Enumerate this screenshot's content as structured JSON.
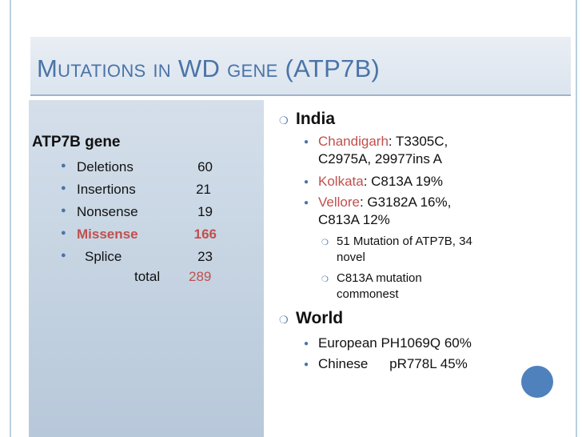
{
  "slide": {
    "title": "Mutations in WD gene (ATP7B)"
  },
  "left": {
    "heading": "ATP7B gene",
    "rows": [
      {
        "label": "Deletions",
        "value": "60"
      },
      {
        "label": "Insertions",
        "value": "21"
      },
      {
        "label": "Nonsense",
        "value": "19"
      },
      {
        "label": "Missense",
        "value": "166"
      },
      {
        "label": "Splice",
        "value": "23"
      }
    ],
    "total_label": "total",
    "total_value": "289"
  },
  "right": {
    "india": {
      "heading": "India",
      "chandigarh_place": "Chandigarh",
      "chandigarh_text_1": ": T3305C,",
      "chandigarh_text_2": "C2975A, 29977ins A",
      "kolkata_place": "Kolkata",
      "kolkata_text": ": C813A 19%",
      "vellore_place": "Vellore",
      "vellore_text_1": ": G3182A 16%,",
      "vellore_text_2": "C813A 12%",
      "sub1_line1": "51 Mutation of ATP7B, 34",
      "sub1_line2": "novel",
      "sub2_line1": "C813A mutation",
      "sub2_line2": "commonest"
    },
    "world": {
      "heading": "World",
      "item1": "European PH1069Q 60%",
      "item2_a": "Chinese",
      "item2_b": "pR778L 45%"
    }
  },
  "colors": {
    "accent": "#4a74a8",
    "highlight": "#c0504d",
    "circle": "#4f81bd"
  }
}
